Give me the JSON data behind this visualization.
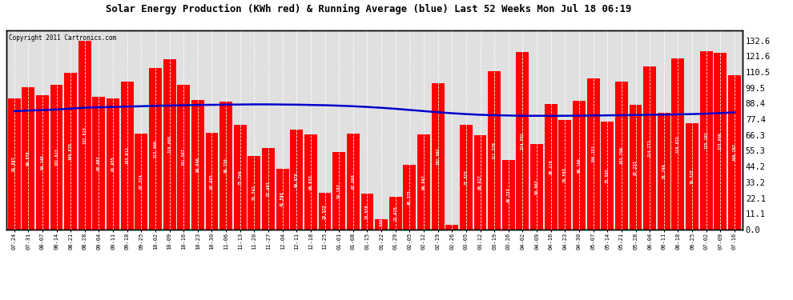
{
  "title": "Solar Energy Production (KWh red) & Running Average (blue) Last 52 Weeks Mon Jul 18 06:19",
  "copyright": "Copyright 2011 Cartronics.com",
  "bar_color": "#ff0000",
  "avg_line_color": "#0000cc",
  "background_color": "#ffffff",
  "plot_bg_color": "#e0e0e0",
  "grid_color": "#ffffff",
  "categories": [
    "07-24",
    "07-31",
    "08-07",
    "08-14",
    "08-21",
    "08-28",
    "09-04",
    "09-11",
    "09-18",
    "09-25",
    "10-02",
    "10-09",
    "10-16",
    "10-23",
    "10-30",
    "11-06",
    "11-13",
    "11-20",
    "11-27",
    "12-04",
    "12-11",
    "12-18",
    "12-25",
    "01-01",
    "01-08",
    "01-15",
    "01-22",
    "01-29",
    "02-05",
    "02-12",
    "02-19",
    "02-26",
    "03-05",
    "03-12",
    "03-19",
    "03-26",
    "04-02",
    "04-09",
    "04-16",
    "04-23",
    "04-30",
    "05-07",
    "05-14",
    "05-21",
    "05-28",
    "06-04",
    "06-11",
    "06-18",
    "06-25",
    "07-02",
    "07-09",
    "07-16"
  ],
  "values": [
    91.897,
    99.876,
    94.146,
    101.613,
    109.875,
    132.615,
    93.082,
    91.955,
    103.912,
    67.324,
    113.46,
    119.46,
    101.567,
    90.9,
    67.985,
    89.73,
    73.749,
    51.741,
    57.467,
    42.598,
    69.978,
    66.933,
    25.533,
    54.152,
    67.09,
    25.078,
    7.009,
    22.925,
    45.375,
    66.897,
    102.692,
    3.152,
    73.525,
    66.417,
    111.33,
    48.737,
    124.582,
    60.007,
    88.216,
    76.583,
    90.1,
    106.151,
    75.885,
    103.709,
    87.233,
    114.271,
    81.749,
    119.822,
    74.715,
    125.102,
    123.906,
    108.297
  ],
  "running_avg": [
    83.0,
    83.5,
    83.8,
    84.2,
    84.8,
    85.5,
    85.8,
    86.0,
    86.3,
    86.5,
    86.8,
    87.0,
    87.2,
    87.4,
    87.5,
    87.6,
    87.7,
    87.8,
    87.8,
    87.7,
    87.6,
    87.4,
    87.2,
    86.9,
    86.5,
    86.0,
    85.4,
    84.7,
    83.9,
    83.1,
    82.3,
    81.6,
    81.0,
    80.5,
    80.2,
    80.0,
    79.8,
    79.8,
    79.8,
    79.8,
    79.9,
    80.0,
    80.1,
    80.2,
    80.3,
    80.5,
    80.6,
    80.8,
    81.0,
    81.3,
    81.7,
    82.2
  ],
  "yticks": [
    0.0,
    11.1,
    22.1,
    33.2,
    44.2,
    55.3,
    66.3,
    77.4,
    88.4,
    99.5,
    110.5,
    121.6,
    132.6
  ],
  "ymax": 140,
  "figsize": [
    9.9,
    3.75
  ],
  "dpi": 100
}
